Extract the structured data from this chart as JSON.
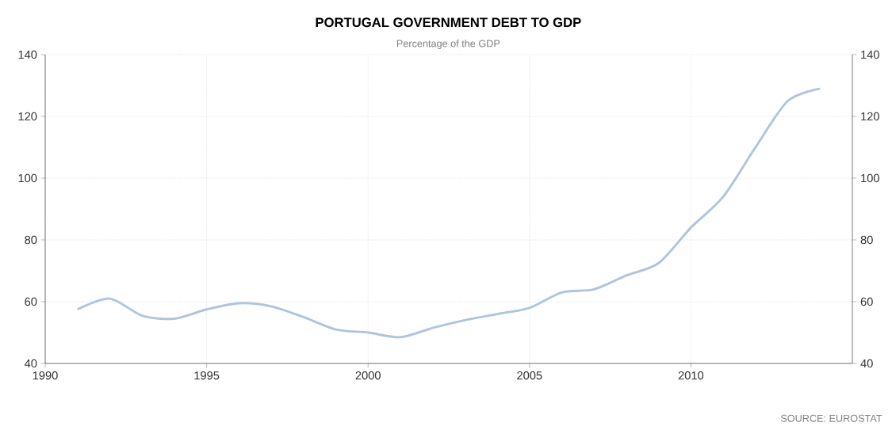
{
  "chart_data": {
    "type": "line",
    "title": "PORTUGAL GOVERNMENT DEBT TO GDP",
    "subtitle": "Percentage of the GDP",
    "annotations": [
      "SOURCE: EUROSTAT"
    ],
    "x": [
      1991,
      1992,
      1993,
      1994,
      1995,
      1996,
      1997,
      1998,
      1999,
      2000,
      2001,
      2002,
      2003,
      2004,
      2005,
      2006,
      2007,
      2008,
      2009,
      2010,
      2011,
      2012,
      2013,
      2014
    ],
    "series": [
      {
        "color": "#b0c4de",
        "values": [
          57.5,
          61,
          55.5,
          54.5,
          57.5,
          59.5,
          58.5,
          55,
          51,
          50,
          48.5,
          51.5,
          54,
          56,
          58,
          63,
          64,
          68.5,
          72.5,
          84,
          94,
          110,
          125,
          129
        ]
      }
    ],
    "xlim": [
      1990,
      2015
    ],
    "ylim": [
      40,
      140
    ],
    "xticks": [
      1990,
      1995,
      2000,
      2005,
      2010
    ],
    "yticks": [
      40,
      60,
      80,
      100,
      120,
      140
    ],
    "y2lim": [
      40,
      140
    ],
    "y2ticks": [
      40,
      60,
      80,
      100,
      120,
      140
    ],
    "grid": true,
    "line_style": "solid",
    "marker": "none"
  }
}
